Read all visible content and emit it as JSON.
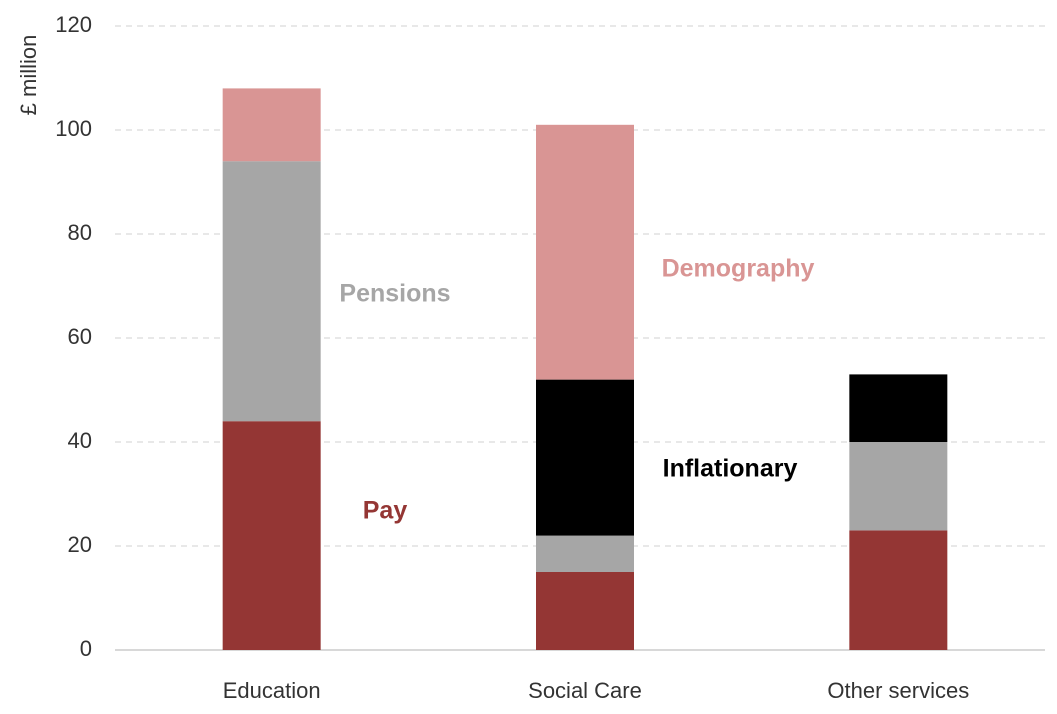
{
  "chart_data": {
    "type": "stacked-bar",
    "y_label": "£ million",
    "categories": [
      "Education",
      "Social Care",
      "Other services"
    ],
    "series": [
      {
        "name": "Pay",
        "color": "#943634",
        "values": [
          44,
          15,
          23
        ]
      },
      {
        "name": "Pensions",
        "color": "#a6a6a6",
        "values": [
          50,
          7,
          17
        ]
      },
      {
        "name": "Inflationary",
        "color": "#000000",
        "values": [
          0,
          30,
          13
        ]
      },
      {
        "name": "Demography",
        "color": "#d99594",
        "values": [
          14,
          49,
          0
        ]
      }
    ],
    "ylim": [
      0,
      120
    ],
    "yticks": [
      0,
      20,
      40,
      60,
      80,
      100,
      120
    ],
    "grid": true
  }
}
